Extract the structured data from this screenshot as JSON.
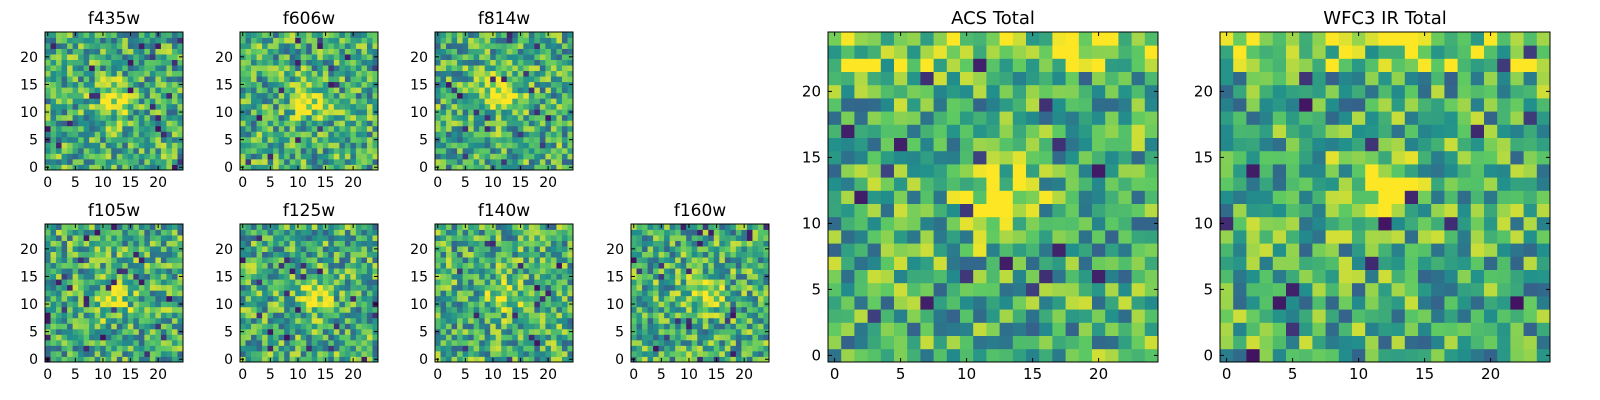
{
  "chart_data": [
    {
      "type": "heatmap",
      "title": "f435w",
      "xlim": [
        0,
        24
      ],
      "ylim": [
        0,
        24
      ],
      "xticks": [
        0,
        5,
        10,
        15,
        20
      ],
      "yticks": [
        0,
        5,
        10,
        15,
        20
      ],
      "grid": false,
      "legend": "none"
    },
    {
      "type": "heatmap",
      "title": "f606w",
      "xlim": [
        0,
        24
      ],
      "ylim": [
        0,
        24
      ],
      "xticks": [
        0,
        5,
        10,
        15,
        20
      ],
      "yticks": [
        0,
        5,
        10,
        15,
        20
      ],
      "grid": false,
      "legend": "none"
    },
    {
      "type": "heatmap",
      "title": "f814w",
      "xlim": [
        0,
        24
      ],
      "ylim": [
        0,
        24
      ],
      "xticks": [
        0,
        5,
        10,
        15,
        20
      ],
      "yticks": [
        0,
        5,
        10,
        15,
        20
      ],
      "grid": false,
      "legend": "none"
    },
    {
      "type": "heatmap",
      "title": "f105w",
      "xlim": [
        0,
        24
      ],
      "ylim": [
        0,
        24
      ],
      "xticks": [
        0,
        5,
        10,
        15,
        20
      ],
      "yticks": [
        0,
        5,
        10,
        15,
        20
      ],
      "grid": false,
      "legend": "none"
    },
    {
      "type": "heatmap",
      "title": "f125w",
      "xlim": [
        0,
        24
      ],
      "ylim": [
        0,
        24
      ],
      "xticks": [
        0,
        5,
        10,
        15,
        20
      ],
      "yticks": [
        0,
        5,
        10,
        15,
        20
      ],
      "grid": false,
      "legend": "none"
    },
    {
      "type": "heatmap",
      "title": "f140w",
      "xlim": [
        0,
        24
      ],
      "ylim": [
        0,
        24
      ],
      "xticks": [
        0,
        5,
        10,
        15,
        20
      ],
      "yticks": [
        0,
        5,
        10,
        15,
        20
      ],
      "grid": false,
      "legend": "none"
    },
    {
      "type": "heatmap",
      "title": "f160w",
      "xlim": [
        0,
        24
      ],
      "ylim": [
        0,
        24
      ],
      "xticks": [
        0,
        5,
        10,
        15,
        20
      ],
      "yticks": [
        0,
        5,
        10,
        15,
        20
      ],
      "grid": false,
      "legend": "none"
    },
    {
      "type": "heatmap",
      "title": "ACS Total",
      "xlim": [
        0,
        24
      ],
      "ylim": [
        0,
        24
      ],
      "xticks": [
        0,
        5,
        10,
        15,
        20
      ],
      "yticks": [
        0,
        5,
        10,
        15,
        20
      ],
      "grid": false,
      "legend": "none"
    },
    {
      "type": "heatmap",
      "title": "WFC3 IR Total",
      "xlim": [
        0,
        24
      ],
      "ylim": [
        0,
        24
      ],
      "xticks": [
        0,
        5,
        10,
        15,
        20
      ],
      "yticks": [
        0,
        5,
        10,
        15,
        20
      ],
      "grid": false,
      "legend": "none"
    }
  ],
  "colormap": [
    "#440154",
    "#3b528b",
    "#21908c",
    "#5dc963",
    "#fde725"
  ]
}
